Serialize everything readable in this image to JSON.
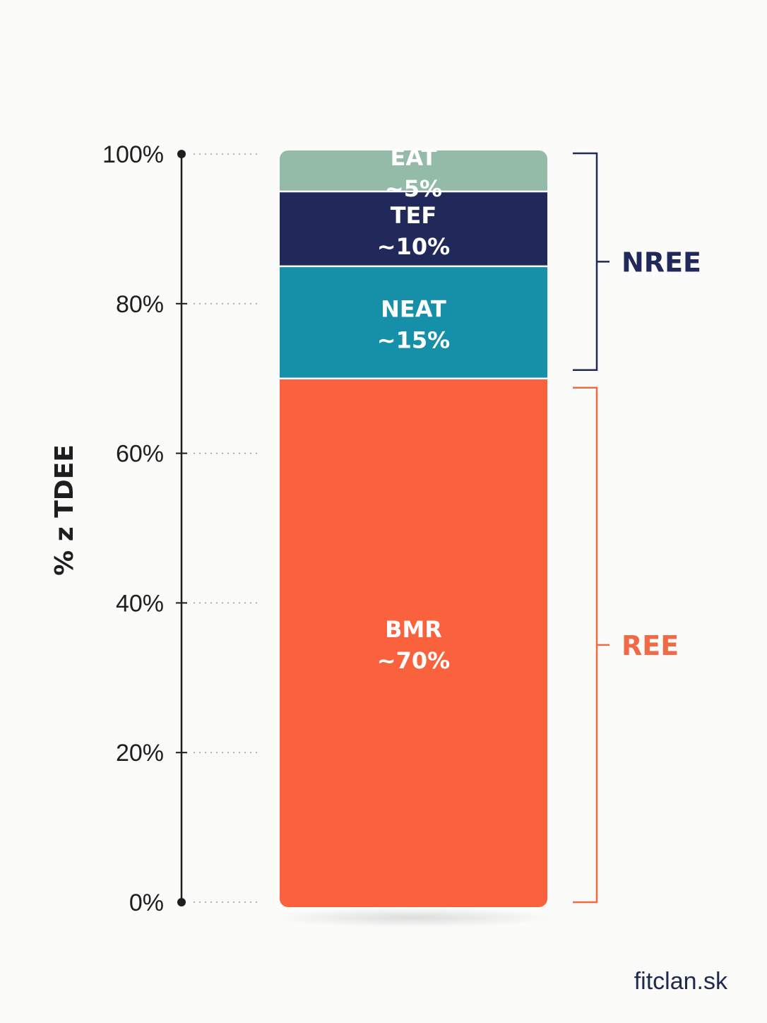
{
  "chart_data": {
    "type": "bar",
    "stacked": true,
    "ylabel": "% z TDEE",
    "ylim": [
      0,
      100
    ],
    "yticks": [
      "0%",
      "20%",
      "40%",
      "60%",
      "80%",
      "100%"
    ],
    "ytick_values": [
      0,
      20,
      40,
      60,
      80,
      100
    ],
    "grid": "dotted guide lines at each y tick",
    "segments": [
      {
        "name": "BMR",
        "value": 70,
        "label": "~70%",
        "color": "#f9623c"
      },
      {
        "name": "NEAT",
        "value": 15,
        "label": "~15%",
        "color": "#1590a8"
      },
      {
        "name": "TEF",
        "value": 10,
        "label": "~10%",
        "color": "#20295a"
      },
      {
        "name": "EAT",
        "value": 5,
        "label": "~5%",
        "color": "#93bba8"
      }
    ],
    "brackets": [
      {
        "label": "REE",
        "covers": [
          "BMR"
        ],
        "color": "#f26a45"
      },
      {
        "label": "NREE",
        "covers": [
          "NEAT",
          "TEF",
          "EAT"
        ],
        "color": "#20295a"
      }
    ]
  },
  "footer": {
    "source": "fitclan.sk"
  }
}
